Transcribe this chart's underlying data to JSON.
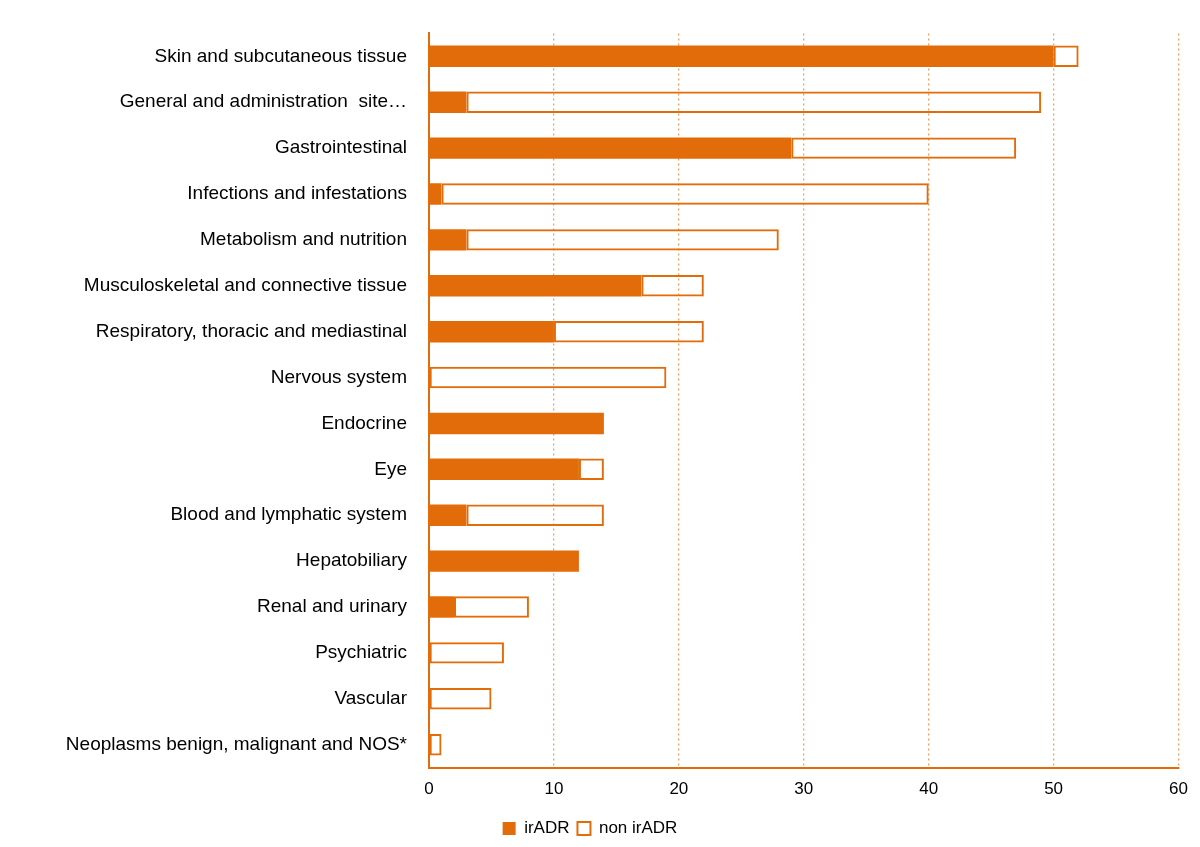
{
  "chart_data": {
    "type": "bar",
    "orientation": "horizontal",
    "stacked": true,
    "categories": [
      "Skin and subcutaneous tissue",
      "General and administration  site…",
      "Gastrointestinal",
      "Infections and infestations",
      "Metabolism and nutrition",
      "Musculoskeletal and connective tissue",
      "Respiratory, thoracic and mediastinal",
      "Nervous system",
      "Endocrine",
      "Eye",
      "Blood and lymphatic system",
      "Hepatobiliary",
      "Renal and urinary",
      "Psychiatric",
      "Vascular",
      "Neoplasms benign, malignant and NOS*"
    ],
    "series": [
      {
        "name": "irADR",
        "color": "#e36c0a",
        "values": [
          50,
          3,
          29,
          1,
          3,
          17,
          10,
          0,
          14,
          12,
          3,
          12,
          2,
          0,
          0,
          0
        ]
      },
      {
        "name": "non irADR",
        "color": "#e36c0a",
        "values": [
          2,
          46,
          18,
          39,
          25,
          5,
          12,
          19,
          0,
          2,
          11,
          0,
          6,
          6,
          5,
          1
        ]
      }
    ],
    "xlim": [
      0,
      60
    ],
    "xticks": [
      0,
      10,
      20,
      30,
      40,
      50,
      60
    ],
    "grid": "x",
    "legend": "bottom"
  }
}
